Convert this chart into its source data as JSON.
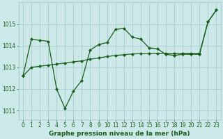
{
  "title": "Graphe pression niveau de la mer (hPa)",
  "bg_color": "#cce8e8",
  "grid_color": "#aad0d0",
  "line_color": "#1a5c1a",
  "marker_color": "#1a5c1a",
  "xlim": [
    -0.5,
    23.5
  ],
  "ylim": [
    1010.6,
    1016.0
  ],
  "yticks": [
    1011,
    1012,
    1013,
    1014,
    1015
  ],
  "xticks": [
    0,
    1,
    2,
    3,
    4,
    5,
    6,
    7,
    8,
    9,
    10,
    11,
    12,
    13,
    14,
    15,
    16,
    17,
    18,
    19,
    20,
    21,
    22,
    23
  ],
  "series1_x": [
    0,
    1,
    2,
    3,
    4,
    5,
    6,
    7,
    8,
    9,
    10,
    11,
    12,
    13,
    14,
    15,
    16,
    17,
    18,
    19,
    20,
    21,
    22,
    23
  ],
  "series1_y": [
    1012.6,
    1014.3,
    1014.25,
    1014.2,
    1012.0,
    1011.1,
    1011.9,
    1012.4,
    1013.8,
    1014.05,
    1014.15,
    1014.75,
    1014.8,
    1014.4,
    1014.3,
    1013.9,
    1013.85,
    1013.6,
    1013.55,
    1013.6,
    1013.6,
    1013.6,
    1015.1,
    1015.65
  ],
  "series2_x": [
    0,
    1,
    2,
    3,
    4,
    5,
    6,
    7,
    8,
    9,
    10,
    11,
    12,
    13,
    14,
    15,
    16,
    17,
    18,
    19,
    20,
    21,
    22,
    23
  ],
  "series2_y": [
    1012.6,
    1013.0,
    1013.05,
    1013.1,
    1013.15,
    1013.2,
    1013.25,
    1013.3,
    1013.38,
    1013.43,
    1013.5,
    1013.55,
    1013.58,
    1013.62,
    1013.63,
    1013.64,
    1013.65,
    1013.65,
    1013.65,
    1013.65,
    1013.65,
    1013.65,
    1015.1,
    1015.65
  ],
  "tick_fontsize": 5.5,
  "xlabel_fontsize": 6.5
}
